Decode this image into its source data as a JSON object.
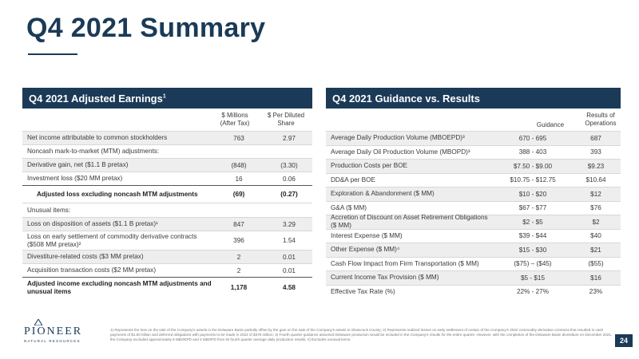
{
  "title": "Q4 2021 Summary",
  "left_panel": {
    "title": "Q4 2021 Adjusted Earnings",
    "title_sup": "1",
    "col1_header": [
      "$ Millions",
      "(After Tax)"
    ],
    "col2_header": [
      "$ Per Diluted",
      "Share"
    ],
    "rows": [
      {
        "label": "Net income attributable to common stockholders",
        "v1": "763",
        "v2": "2.97"
      },
      {
        "label": "Noncash mark-to-market (MTM) adjustments:",
        "v1": "",
        "v2": ""
      },
      {
        "label": "Derivative gain, net ($1.1 B pretax)",
        "v1": "(848)",
        "v2": "(3.30)"
      },
      {
        "label": "Investment loss ($20 MM pretax)",
        "v1": "16",
        "v2": "0.06"
      },
      {
        "label": "Adjusted loss excluding noncash MTM adjustments",
        "v1": "(69)",
        "v2": "(0.27)"
      },
      {
        "label": "Unusual items:",
        "v1": "",
        "v2": ""
      },
      {
        "label": "Loss on disposition of assets ($1.1 B pretax)¹",
        "v1": "847",
        "v2": "3.29"
      },
      {
        "label": "Loss on early settlement of commodity derivative contracts ($508 MM pretax)²",
        "v1": "396",
        "v2": "1.54"
      },
      {
        "label": "Divestiture-related costs ($3 MM pretax)",
        "v1": "2",
        "v2": "0.01"
      },
      {
        "label": "Acquisition transaction costs ($2 MM pretax)",
        "v1": "2",
        "v2": "0.01"
      },
      {
        "label": "Adjusted income excluding noncash MTM adjustments and unusual items",
        "v1": "1,178",
        "v2": "4.58"
      }
    ]
  },
  "right_panel": {
    "title": "Q4 2021 Guidance vs. Results",
    "col1_header": "Guidance",
    "col2_header": [
      "Results of",
      "Operations"
    ],
    "rows": [
      {
        "label": "Average Daily Production Volume (MBOEPD)³",
        "v1": "670 - 695",
        "v2": "687"
      },
      {
        "label": "Average Daily Oil Production Volume (MBOPD)³",
        "v1": "388 - 403",
        "v2": "393"
      },
      {
        "label": "Production Costs per BOE",
        "v1": "$7.50 - $9.00",
        "v2": "$9.23"
      },
      {
        "label": "DD&A per BOE",
        "v1": "$10.75 - $12.75",
        "v2": "$10.64"
      },
      {
        "label": "Exploration & Abandonment ($ MM)",
        "v1": "$10 - $20",
        "v2": "$12"
      },
      {
        "label": "G&A ($ MM)",
        "v1": "$67 - $77",
        "v2": "$76"
      },
      {
        "label": "Accretion of Discount on Asset Retirement Obligations ($ MM)",
        "v1": "$2 - $5",
        "v2": "$2"
      },
      {
        "label": "Interest Expense ($ MM)",
        "v1": "$39 - $44",
        "v2": "$40"
      },
      {
        "label": "Other Expense ($ MM)⁴",
        "v1": "$15 - $30",
        "v2": "$21"
      },
      {
        "label": "Cash Flow Impact from Firm Transportation ($ MM)",
        "v1": "($75) – ($45)",
        "v2": "($55)"
      },
      {
        "label": "Current Income Tax Provision ($ MM)",
        "v1": "$5 - $15",
        "v2": "$16"
      },
      {
        "label": "Effective Tax Rate (%)",
        "v1": "22% - 27%",
        "v2": "23%"
      }
    ]
  },
  "logo": {
    "name": "PIONEER",
    "sub": "NATURAL RESOURCES"
  },
  "footnote": "1) Represents the loss on the sale of the Company's assets in the Delaware Basin partially offset by the gain on the sale of the Company's assets in Glasscock County; 2) Represents realized losses on early settlement of certain of the Company's 2022 commodity derivative contracts that resulted in cash payments of $1.80 billion and deferred obligations with payments to be made in 2022 of $378 million; 3) Fourth quarter guidance assumed Delaware production would be included in the Company's results for the entire quarter. However, with the completion of the Delaware Basin divestiture on December 2021, the Company excluded approximately 6 MBOEPD and 4 MBOPD from its fourth quarter average daily production results; 4) Excludes unusual items.",
  "page_number": "24",
  "colors": {
    "brand_navy": "#1b3a57",
    "row_shade": "#eeeeee"
  }
}
